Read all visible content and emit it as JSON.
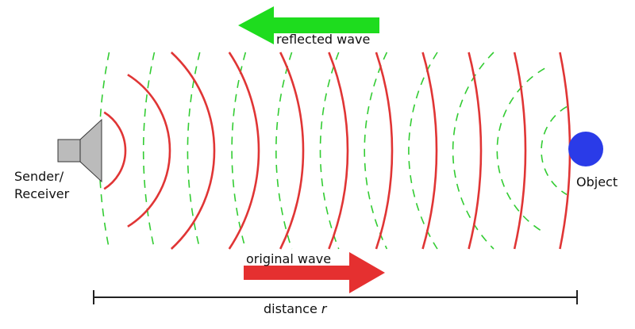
{
  "labels": {
    "reflected": "reflected wave",
    "original": "original wave",
    "sender_line1": "Sender/",
    "sender_line2": "Receiver",
    "object": "Object",
    "distance": "distance ",
    "distance_var": "r"
  },
  "colors": {
    "original_wave": "#e03535",
    "reflected_wave": "#33cc33",
    "reflected_arrow": "#1edc1e",
    "original_arrow": "#e53030",
    "object": "#2a3be8",
    "speaker": "#bbbbbb"
  },
  "icons": {
    "sender": "speaker-icon",
    "object": "circle"
  }
}
